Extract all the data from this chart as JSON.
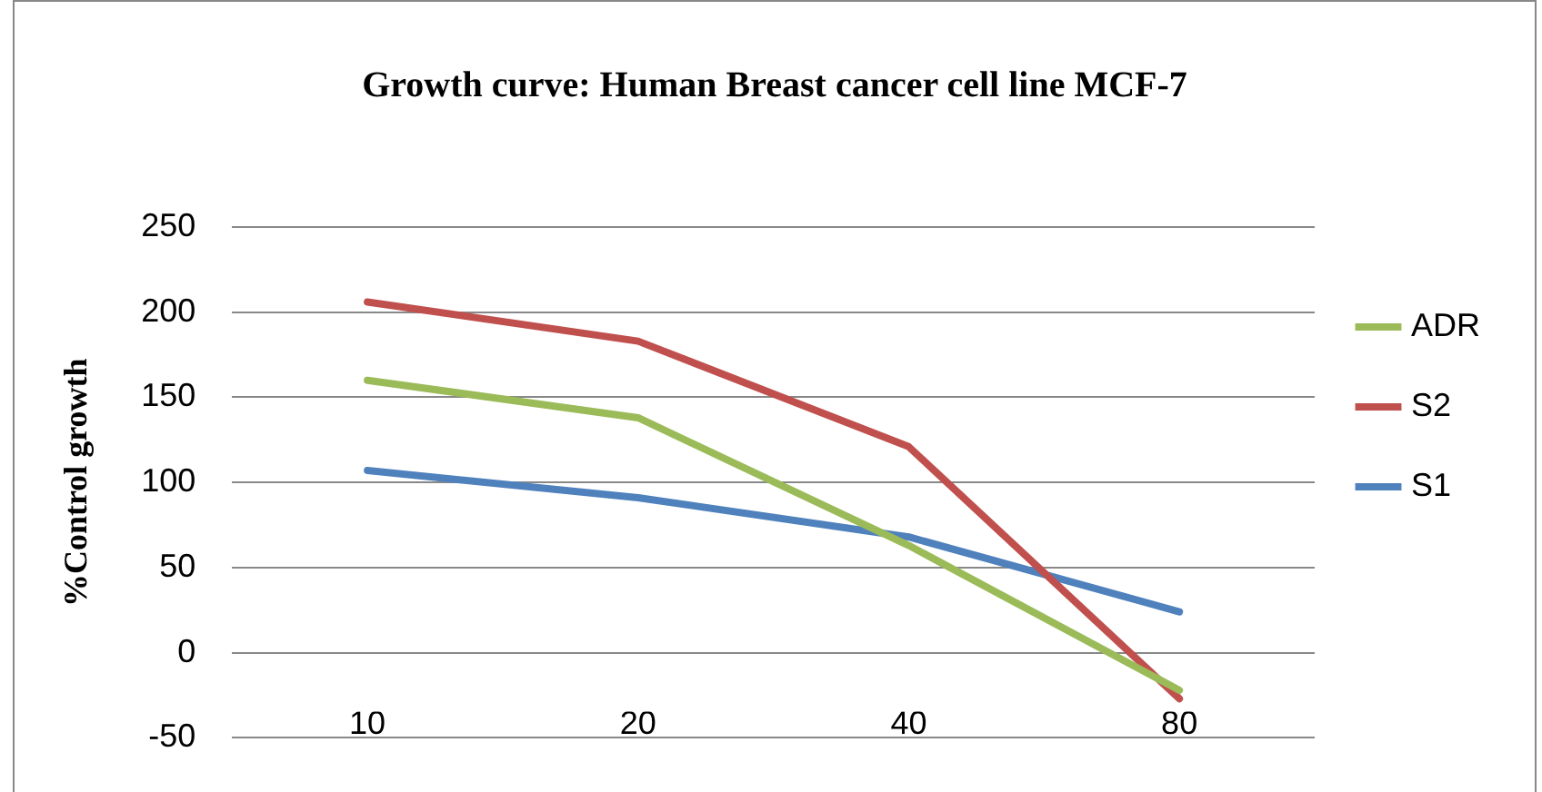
{
  "chart_data": {
    "type": "line",
    "title": "Growth curve: Human Breast cancer cell line MCF-7",
    "ylabel": "%Control growth",
    "categories": [
      "10",
      "20",
      "40",
      "80"
    ],
    "series": [
      {
        "name": "ADR",
        "color": "#9bbb59",
        "values": [
          160,
          138,
          63,
          -22
        ]
      },
      {
        "name": "S2",
        "color": "#c0504d",
        "values": [
          206,
          183,
          121,
          -27
        ]
      },
      {
        "name": "S1",
        "color": "#4f81bd",
        "values": [
          107,
          91,
          68,
          24
        ]
      }
    ],
    "ylim": [
      -50,
      250
    ],
    "yticks": [
      -50,
      0,
      50,
      100,
      150,
      200,
      250
    ],
    "grid": "y",
    "legend": "right",
    "marker": "none",
    "line_style": "solid"
  }
}
